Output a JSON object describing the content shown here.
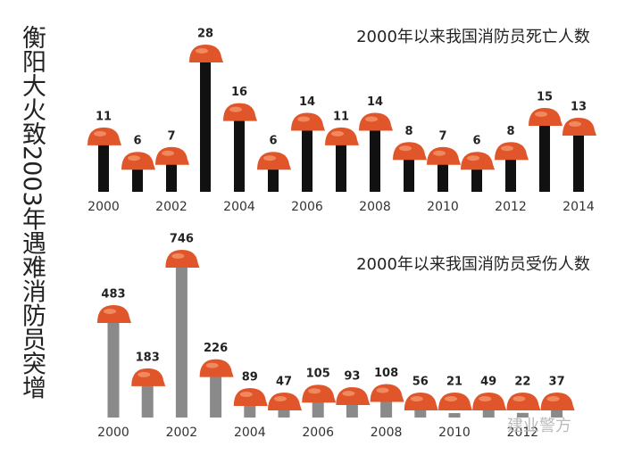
{
  "title": "衡阳大火致2003年遇难消防员突增",
  "watermark": "建业警方",
  "chart_data": [
    {
      "type": "bar",
      "title": "2000年以来我国消防员死亡人数",
      "categories": [
        "2000",
        null,
        "2002",
        null,
        "2004",
        null,
        "2006",
        null,
        "2008",
        null,
        "2010",
        null,
        "2012",
        null,
        "2014"
      ],
      "values": [
        11,
        6,
        7,
        28,
        16,
        6,
        14,
        11,
        14,
        8,
        7,
        6,
        8,
        15,
        13
      ],
      "color": "#111111",
      "marker_color": "#e0552a"
    },
    {
      "type": "bar",
      "title": "2000年以来我国消防员受伤人数",
      "categories": [
        "2000",
        null,
        "2002",
        null,
        "2004",
        null,
        "2006",
        null,
        "2008",
        null,
        "2010",
        null,
        "2012",
        null
      ],
      "values": [
        483,
        183,
        746,
        226,
        89,
        47,
        105,
        93,
        108,
        56,
        21,
        49,
        22,
        37
      ],
      "color": "#8a8a8a",
      "marker_color": "#e0552a"
    }
  ]
}
